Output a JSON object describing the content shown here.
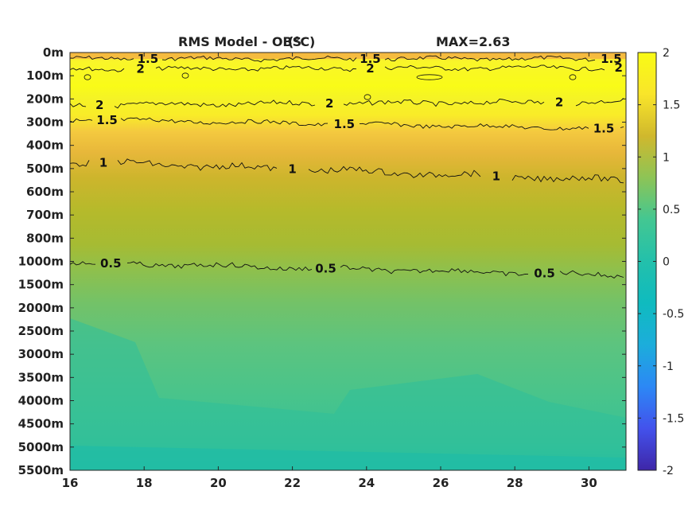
{
  "chart_data": {
    "type": "heatmap",
    "title": "RMS Model - OBS",
    "title_unit": "(°C)",
    "max_label": "MAX=2.63",
    "xlim": [
      16,
      31
    ],
    "x_ticks": [
      16,
      18,
      20,
      22,
      24,
      26,
      28,
      30
    ],
    "y_ticks": [
      "0m",
      "100m",
      "200m",
      "300m",
      "400m",
      "500m",
      "600m",
      "700m",
      "800m",
      "1000m",
      "1500m",
      "2000m",
      "2500m",
      "3000m",
      "3500m",
      "4000m",
      "4500m",
      "5000m",
      "5500m"
    ],
    "colorbar": {
      "range": [
        -2,
        2
      ],
      "ticks": [
        2,
        1.5,
        1,
        0.5,
        0,
        -0.5,
        -1,
        -1.5,
        -2
      ],
      "stops": [
        "#3e26a8",
        "#4352ec",
        "#2c88f5",
        "#1caddb",
        "#1bbfb5",
        "#43c792",
        "#8dc456",
        "#d0b82d",
        "#f8bf3b",
        "#f9e52a",
        "#f9fb15"
      ]
    },
    "contours": [
      {
        "level": "1.5",
        "labels_x": [
          18.1,
          24.1,
          30.6
        ]
      },
      {
        "level": "2",
        "labels_x": [
          17.9,
          24.1,
          30.8
        ]
      },
      {
        "level": "2",
        "labels_x": [
          16.8,
          23.0,
          29.2
        ]
      },
      {
        "level": "1.5",
        "labels_x": [
          17.0,
          23.4,
          30.4
        ]
      },
      {
        "level": "1",
        "labels_x": [
          16.9,
          22.0,
          27.5
        ]
      },
      {
        "level": "0.5",
        "labels_x": [
          17.1,
          22.9,
          28.8
        ]
      }
    ],
    "depth_profile_rms": [
      1.55,
      1.95,
      2.0,
      1.4,
      1.15,
      0.95,
      0.82,
      0.7,
      0.62,
      0.45,
      0.4,
      0.35,
      0.33,
      0.32,
      0.31,
      0.3,
      0.3,
      0.28,
      0.25
    ]
  }
}
